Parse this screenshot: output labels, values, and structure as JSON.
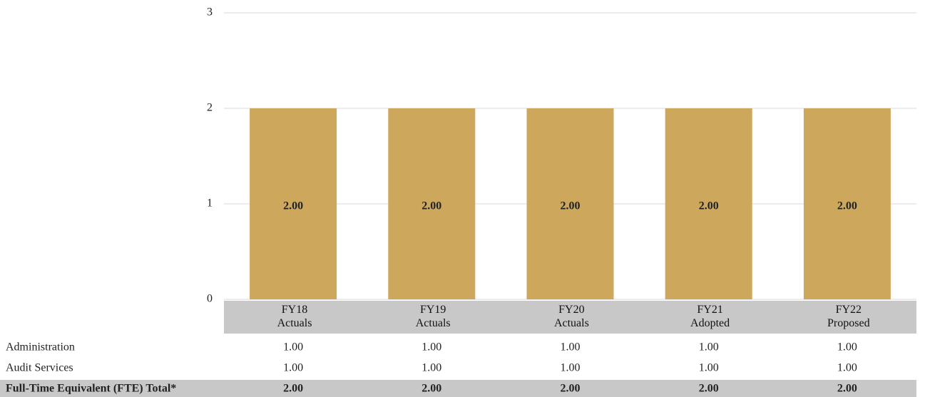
{
  "chart_data": {
    "type": "bar",
    "categories": [
      "FY18\nActuals",
      "FY19\nActuals",
      "FY20\nActuals",
      "FY21\nAdopted",
      "FY22\nProposed"
    ],
    "values": [
      2,
      2,
      2,
      2,
      2
    ],
    "value_labels": [
      "2.00",
      "2.00",
      "2.00",
      "2.00",
      "2.00"
    ],
    "color": "#cda85c",
    "ylim": [
      0,
      3
    ],
    "yticks": [
      0,
      1,
      2,
      3
    ],
    "grid": true
  },
  "table": {
    "rows": [
      [
        "Administration",
        "1.00",
        "1.00",
        "1.00",
        "1.00",
        "1.00"
      ],
      [
        "Audit Services",
        "1.00",
        "1.00",
        "1.00",
        "1.00",
        "1.00"
      ],
      [
        "Full-Time Equivalent (FTE) Total*",
        "2.00",
        "2.00",
        "2.00",
        "2.00",
        "2.00"
      ]
    ]
  }
}
